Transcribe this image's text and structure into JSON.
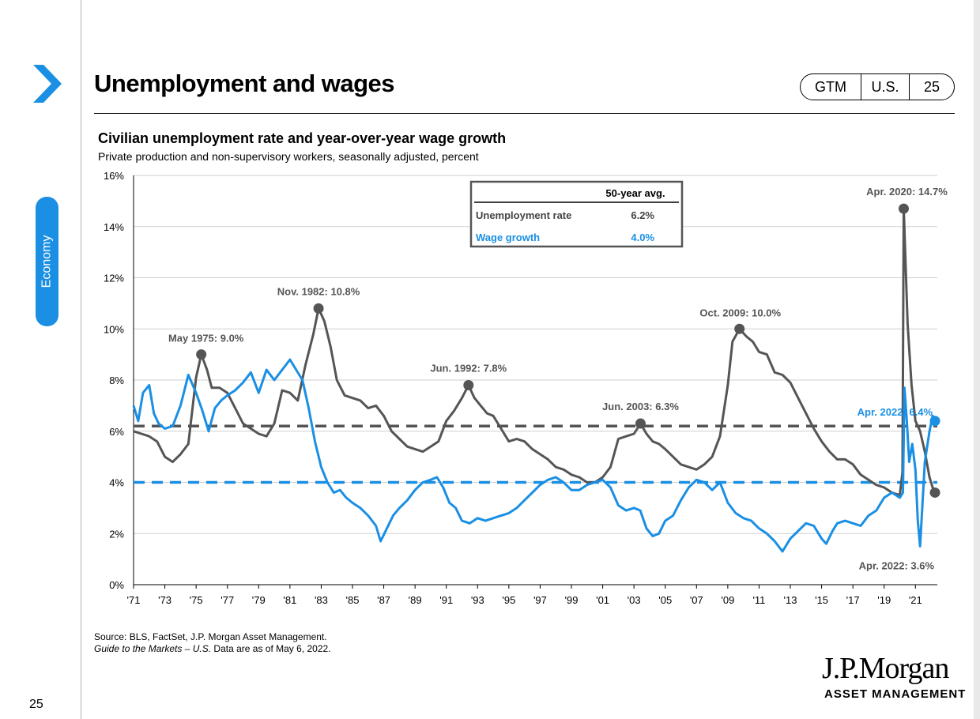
{
  "slide": {
    "title": "Unemployment and wages",
    "section_tab": "Economy",
    "page_number": "25",
    "pill": {
      "left": "GTM",
      "middle": "U.S.",
      "right": "25"
    },
    "source_line1": "Source: BLS, FactSet, J.P. Morgan Asset Management.",
    "source_line2_italic": "Guide to the Markets – U.S.",
    "source_line2_rest": " Data are as of May 6, 2022.",
    "logo_main": "J.P.Morgan",
    "logo_sub": "ASSET MANAGEMENT",
    "colors": {
      "accent": "#1a8fe3",
      "unemployment": "#555555",
      "wages": "#1a8fe3"
    }
  },
  "chart_data": {
    "type": "line",
    "title": "Civilian unemployment rate and year-over-year wage growth",
    "subtitle": "Private production and non-supervisory workers, seasonally adjusted, percent",
    "x_ticks": [
      "'71",
      "'73",
      "'75",
      "'77",
      "'79",
      "'81",
      "'83",
      "'85",
      "'87",
      "'89",
      "'91",
      "'93",
      "'95",
      "'97",
      "'99",
      "'01",
      "'03",
      "'05",
      "'07",
      "'09",
      "'11",
      "'13",
      "'15",
      "'17",
      "'19",
      "'21"
    ],
    "y_ticks": [
      "0%",
      "2%",
      "4%",
      "6%",
      "8%",
      "10%",
      "12%",
      "14%",
      "16%"
    ],
    "xlim": [
      1971,
      2022.4
    ],
    "ylim": [
      0,
      16
    ],
    "grid": "horizontal",
    "averages_table": {
      "header": "50-year avg.",
      "rows": [
        {
          "label": "Unemployment rate",
          "value": "6.2%",
          "avg": 6.2
        },
        {
          "label": "Wage growth",
          "value": "4.0%",
          "avg": 4.0
        }
      ]
    },
    "series": [
      {
        "name": "Unemployment rate",
        "color": "#555555",
        "points": [
          [
            1971.0,
            6.0
          ],
          [
            1971.5,
            5.9
          ],
          [
            1972.0,
            5.8
          ],
          [
            1972.5,
            5.6
          ],
          [
            1973.0,
            5.0
          ],
          [
            1973.5,
            4.8
          ],
          [
            1974.0,
            5.1
          ],
          [
            1974.5,
            5.5
          ],
          [
            1975.0,
            8.1
          ],
          [
            1975.33,
            9.0
          ],
          [
            1975.7,
            8.4
          ],
          [
            1976.0,
            7.7
          ],
          [
            1976.5,
            7.7
          ],
          [
            1977.0,
            7.5
          ],
          [
            1977.5,
            6.9
          ],
          [
            1978.0,
            6.3
          ],
          [
            1978.5,
            6.1
          ],
          [
            1979.0,
            5.9
          ],
          [
            1979.5,
            5.8
          ],
          [
            1980.0,
            6.3
          ],
          [
            1980.5,
            7.6
          ],
          [
            1981.0,
            7.5
          ],
          [
            1981.5,
            7.2
          ],
          [
            1982.0,
            8.6
          ],
          [
            1982.5,
            9.8
          ],
          [
            1982.83,
            10.8
          ],
          [
            1983.2,
            10.3
          ],
          [
            1983.6,
            9.3
          ],
          [
            1984.0,
            8.0
          ],
          [
            1984.5,
            7.4
          ],
          [
            1985.0,
            7.3
          ],
          [
            1985.5,
            7.2
          ],
          [
            1986.0,
            6.9
          ],
          [
            1986.5,
            7.0
          ],
          [
            1987.0,
            6.6
          ],
          [
            1987.5,
            6.0
          ],
          [
            1988.0,
            5.7
          ],
          [
            1988.5,
            5.4
          ],
          [
            1989.0,
            5.3
          ],
          [
            1989.5,
            5.2
          ],
          [
            1990.0,
            5.4
          ],
          [
            1990.5,
            5.6
          ],
          [
            1991.0,
            6.4
          ],
          [
            1991.5,
            6.8
          ],
          [
            1992.0,
            7.3
          ],
          [
            1992.42,
            7.8
          ],
          [
            1992.8,
            7.3
          ],
          [
            1993.2,
            7.0
          ],
          [
            1993.6,
            6.7
          ],
          [
            1994.0,
            6.6
          ],
          [
            1994.5,
            6.1
          ],
          [
            1995.0,
            5.6
          ],
          [
            1995.5,
            5.7
          ],
          [
            1996.0,
            5.6
          ],
          [
            1996.5,
            5.3
          ],
          [
            1997.0,
            5.1
          ],
          [
            1997.5,
            4.9
          ],
          [
            1998.0,
            4.6
          ],
          [
            1998.5,
            4.5
          ],
          [
            1999.0,
            4.3
          ],
          [
            1999.5,
            4.2
          ],
          [
            2000.0,
            4.0
          ],
          [
            2000.5,
            4.0
          ],
          [
            2001.0,
            4.2
          ],
          [
            2001.5,
            4.6
          ],
          [
            2002.0,
            5.7
          ],
          [
            2002.5,
            5.8
          ],
          [
            2003.0,
            5.9
          ],
          [
            2003.42,
            6.3
          ],
          [
            2003.8,
            5.9
          ],
          [
            2004.2,
            5.6
          ],
          [
            2004.6,
            5.5
          ],
          [
            2005.0,
            5.3
          ],
          [
            2005.5,
            5.0
          ],
          [
            2006.0,
            4.7
          ],
          [
            2006.5,
            4.6
          ],
          [
            2007.0,
            4.5
          ],
          [
            2007.5,
            4.7
          ],
          [
            2008.0,
            5.0
          ],
          [
            2008.5,
            5.8
          ],
          [
            2009.0,
            7.8
          ],
          [
            2009.3,
            9.5
          ],
          [
            2009.75,
            10.0
          ],
          [
            2010.2,
            9.7
          ],
          [
            2010.6,
            9.5
          ],
          [
            2011.0,
            9.1
          ],
          [
            2011.5,
            9.0
          ],
          [
            2012.0,
            8.3
          ],
          [
            2012.5,
            8.2
          ],
          [
            2013.0,
            7.9
          ],
          [
            2013.5,
            7.3
          ],
          [
            2014.0,
            6.7
          ],
          [
            2014.5,
            6.1
          ],
          [
            2015.0,
            5.6
          ],
          [
            2015.5,
            5.2
          ],
          [
            2016.0,
            4.9
          ],
          [
            2016.5,
            4.9
          ],
          [
            2017.0,
            4.7
          ],
          [
            2017.5,
            4.3
          ],
          [
            2018.0,
            4.1
          ],
          [
            2018.5,
            3.9
          ],
          [
            2019.0,
            3.8
          ],
          [
            2019.5,
            3.6
          ],
          [
            2020.0,
            3.5
          ],
          [
            2020.17,
            4.4
          ],
          [
            2020.25,
            14.7
          ],
          [
            2020.5,
            10.2
          ],
          [
            2020.75,
            7.8
          ],
          [
            2021.0,
            6.4
          ],
          [
            2021.3,
            6.0
          ],
          [
            2021.6,
            5.2
          ],
          [
            2021.9,
            4.2
          ],
          [
            2022.1,
            3.8
          ],
          [
            2022.25,
            3.6
          ]
        ]
      },
      {
        "name": "Wage growth",
        "color": "#1a8fe3",
        "points": [
          [
            1971.0,
            7.0
          ],
          [
            1971.3,
            6.4
          ],
          [
            1971.6,
            7.5
          ],
          [
            1972.0,
            7.8
          ],
          [
            1972.3,
            6.7
          ],
          [
            1972.6,
            6.3
          ],
          [
            1973.0,
            6.1
          ],
          [
            1973.5,
            6.2
          ],
          [
            1974.0,
            7.0
          ],
          [
            1974.5,
            8.2
          ],
          [
            1975.0,
            7.5
          ],
          [
            1975.4,
            6.8
          ],
          [
            1975.8,
            6.0
          ],
          [
            1976.2,
            6.9
          ],
          [
            1976.6,
            7.2
          ],
          [
            1977.0,
            7.4
          ],
          [
            1977.5,
            7.6
          ],
          [
            1978.0,
            7.9
          ],
          [
            1978.5,
            8.3
          ],
          [
            1979.0,
            7.5
          ],
          [
            1979.5,
            8.4
          ],
          [
            1980.0,
            8.0
          ],
          [
            1980.5,
            8.4
          ],
          [
            1981.0,
            8.8
          ],
          [
            1981.4,
            8.4
          ],
          [
            1981.8,
            8.0
          ],
          [
            1982.2,
            6.9
          ],
          [
            1982.6,
            5.6
          ],
          [
            1983.0,
            4.6
          ],
          [
            1983.4,
            4.0
          ],
          [
            1983.8,
            3.6
          ],
          [
            1984.2,
            3.7
          ],
          [
            1984.6,
            3.4
          ],
          [
            1985.0,
            3.2
          ],
          [
            1985.5,
            3.0
          ],
          [
            1986.0,
            2.7
          ],
          [
            1986.5,
            2.3
          ],
          [
            1986.8,
            1.7
          ],
          [
            1987.2,
            2.2
          ],
          [
            1987.6,
            2.7
          ],
          [
            1988.0,
            3.0
          ],
          [
            1988.5,
            3.3
          ],
          [
            1989.0,
            3.7
          ],
          [
            1989.5,
            4.0
          ],
          [
            1990.0,
            4.1
          ],
          [
            1990.4,
            4.2
          ],
          [
            1990.8,
            3.8
          ],
          [
            1991.2,
            3.2
          ],
          [
            1991.6,
            3.0
          ],
          [
            1992.0,
            2.5
          ],
          [
            1992.5,
            2.4
          ],
          [
            1993.0,
            2.6
          ],
          [
            1993.5,
            2.5
          ],
          [
            1994.0,
            2.6
          ],
          [
            1994.5,
            2.7
          ],
          [
            1995.0,
            2.8
          ],
          [
            1995.5,
            3.0
          ],
          [
            1996.0,
            3.3
          ],
          [
            1996.5,
            3.6
          ],
          [
            1997.0,
            3.9
          ],
          [
            1997.5,
            4.1
          ],
          [
            1998.0,
            4.2
          ],
          [
            1998.5,
            4.0
          ],
          [
            1999.0,
            3.7
          ],
          [
            1999.5,
            3.7
          ],
          [
            2000.0,
            3.9
          ],
          [
            2000.5,
            4.0
          ],
          [
            2001.0,
            4.1
          ],
          [
            2001.5,
            3.8
          ],
          [
            2002.0,
            3.1
          ],
          [
            2002.5,
            2.9
          ],
          [
            2003.0,
            3.0
          ],
          [
            2003.4,
            2.9
          ],
          [
            2003.8,
            2.2
          ],
          [
            2004.2,
            1.9
          ],
          [
            2004.6,
            2.0
          ],
          [
            2005.0,
            2.5
          ],
          [
            2005.5,
            2.7
          ],
          [
            2006.0,
            3.3
          ],
          [
            2006.5,
            3.8
          ],
          [
            2007.0,
            4.1
          ],
          [
            2007.5,
            4.0
          ],
          [
            2008.0,
            3.7
          ],
          [
            2008.5,
            4.0
          ],
          [
            2009.0,
            3.2
          ],
          [
            2009.5,
            2.8
          ],
          [
            2010.0,
            2.6
          ],
          [
            2010.5,
            2.5
          ],
          [
            2011.0,
            2.2
          ],
          [
            2011.5,
            2.0
          ],
          [
            2012.0,
            1.7
          ],
          [
            2012.5,
            1.3
          ],
          [
            2013.0,
            1.8
          ],
          [
            2013.5,
            2.1
          ],
          [
            2014.0,
            2.4
          ],
          [
            2014.5,
            2.3
          ],
          [
            2015.0,
            1.8
          ],
          [
            2015.3,
            1.6
          ],
          [
            2015.7,
            2.1
          ],
          [
            2016.0,
            2.4
          ],
          [
            2016.5,
            2.5
          ],
          [
            2017.0,
            2.4
          ],
          [
            2017.5,
            2.3
          ],
          [
            2018.0,
            2.7
          ],
          [
            2018.5,
            2.9
          ],
          [
            2019.0,
            3.4
          ],
          [
            2019.5,
            3.6
          ],
          [
            2020.0,
            3.4
          ],
          [
            2020.2,
            3.6
          ],
          [
            2020.3,
            7.7
          ],
          [
            2020.45,
            6.4
          ],
          [
            2020.6,
            4.8
          ],
          [
            2020.8,
            5.5
          ],
          [
            2021.0,
            4.5
          ],
          [
            2021.15,
            2.5
          ],
          [
            2021.3,
            1.5
          ],
          [
            2021.6,
            4.8
          ],
          [
            2021.9,
            6.0
          ],
          [
            2022.1,
            6.6
          ],
          [
            2022.25,
            6.4
          ]
        ]
      }
    ],
    "annotations": [
      {
        "text": "May 1975: 9.0%",
        "x": 1975.33,
        "y": 9.0,
        "series": "Unemployment rate"
      },
      {
        "text": "Nov. 1982: 10.8%",
        "x": 1982.83,
        "y": 10.8,
        "series": "Unemployment rate"
      },
      {
        "text": "Jun. 1992: 7.8%",
        "x": 1992.42,
        "y": 7.8,
        "series": "Unemployment rate"
      },
      {
        "text": "Jun. 2003: 6.3%",
        "x": 2003.42,
        "y": 6.3,
        "series": "Unemployment rate"
      },
      {
        "text": "Oct. 2009: 10.0%",
        "x": 2009.75,
        "y": 10.0,
        "series": "Unemployment rate"
      },
      {
        "text": "Apr. 2020: 14.7%",
        "x": 2020.25,
        "y": 14.7,
        "series": "Unemployment rate"
      },
      {
        "text": "Apr. 2022: 6.4%",
        "x": 2022.25,
        "y": 6.4,
        "series": "Wage growth"
      },
      {
        "text": "Apr. 2022: 3.6%",
        "x": 2022.25,
        "y": 3.6,
        "series": "Unemployment rate"
      }
    ]
  }
}
